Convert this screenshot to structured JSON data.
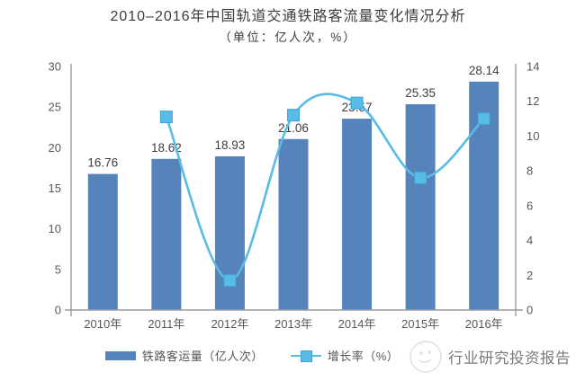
{
  "title": "2010–2016年中国轨道交通铁路客流量变化情况分析",
  "subtitle": "（单位：亿人次，%）",
  "colors": {
    "bar": "#5583ba",
    "line": "#58bce6",
    "marker_fill": "#58bce6",
    "marker_stroke": "#3ea3d4",
    "axis": "#9c9c9c",
    "tick_text": "#595959",
    "bar_label_text": "#3d3d3d",
    "watermark_text": "#7a7a7a"
  },
  "legend": [
    {
      "label": "铁路客运量（亿人次）",
      "swatch": "bar",
      "color": "#5583ba"
    },
    {
      "label": "增长率（%）",
      "swatch": "line-square",
      "color": "#58bce6"
    }
  ],
  "watermark": {
    "text": "行业研究投资报告",
    "logo": "faint-circle-doodle-logo"
  },
  "chart_data": {
    "type": "bar",
    "subtype": "bar+line-combo",
    "title": "2010–2016年中国轨道交通铁路客流量变化情况分析",
    "subtitle": "（单位：亿人次，%）",
    "categories": [
      "2010年",
      "2011年",
      "2012年",
      "2013年",
      "2014年",
      "2015年",
      "2016年"
    ],
    "series": [
      {
        "name": "铁路客运量（亿人次）",
        "type": "bar",
        "axis": "left",
        "color": "#5583ba",
        "values": [
          16.76,
          18.62,
          18.93,
          21.06,
          23.57,
          25.35,
          28.14
        ],
        "labels": [
          "16.76",
          "18.62",
          "18.93",
          "21.06",
          "23.57",
          "25.35",
          "28.14"
        ]
      },
      {
        "name": "增长率（%）",
        "type": "line",
        "smooth": true,
        "axis": "right",
        "color": "#58bce6",
        "marker": "square",
        "values": [
          null,
          11.1,
          1.7,
          11.2,
          11.9,
          7.6,
          11.0
        ]
      }
    ],
    "left_axis": {
      "min": 0,
      "max": 30,
      "ticks": [
        0,
        5,
        10,
        15,
        20,
        25,
        30
      ]
    },
    "right_axis": {
      "min": 0,
      "max": 14,
      "ticks": [
        0,
        2,
        4,
        6,
        8,
        10,
        12,
        14
      ]
    },
    "grid": false,
    "data_labels": "bars-only",
    "legend_position": "bottom"
  }
}
